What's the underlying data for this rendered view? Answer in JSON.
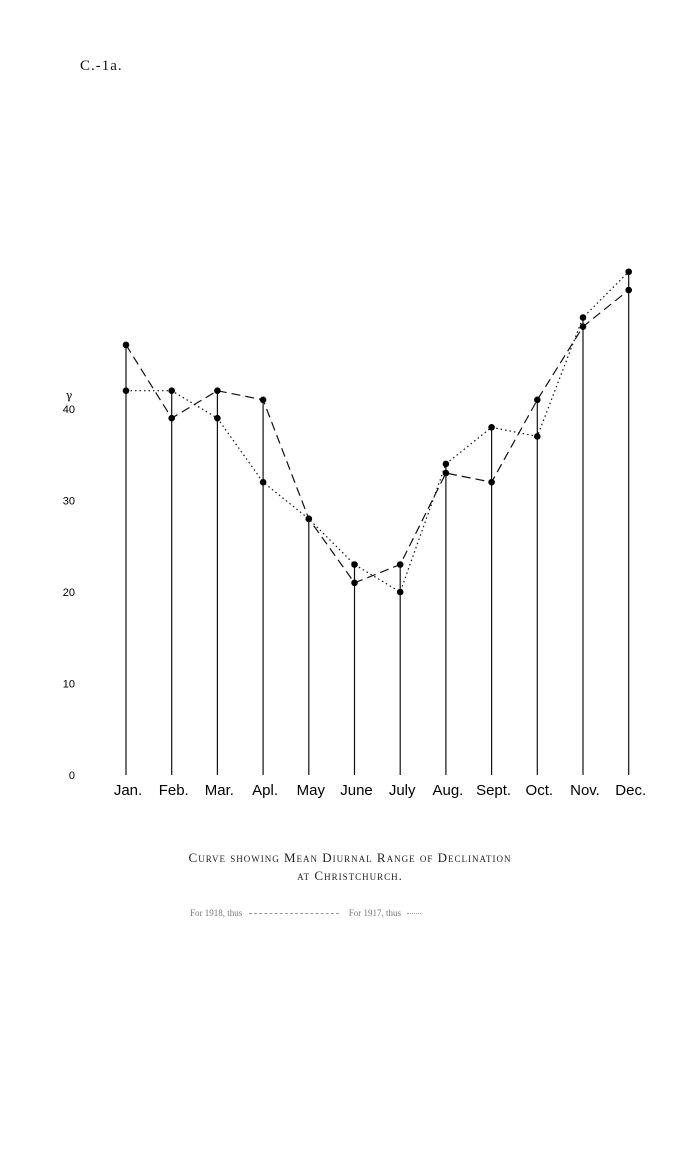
{
  "page_code": "C.-1a.",
  "chart_data": {
    "type": "line",
    "categories": [
      "Jan.",
      "Feb.",
      "Mar.",
      "Apl.",
      "May",
      "June",
      "July",
      "Aug.",
      "Sept.",
      "Oct.",
      "Nov.",
      "Dec."
    ],
    "unit_symbol": "γ",
    "yticks": [
      0,
      10,
      20,
      30,
      40
    ],
    "ylim": [
      0,
      55
    ],
    "series": [
      {
        "name": "For 1918, thus",
        "style": "dashed",
        "values": [
          47,
          39,
          42,
          41,
          28,
          21,
          23,
          33,
          32,
          41,
          49,
          53
        ]
      },
      {
        "name": "For 1917, thus",
        "style": "dotted",
        "values": [
          42,
          42,
          39,
          32,
          28,
          23,
          20,
          34,
          38,
          37,
          50,
          55
        ]
      }
    ],
    "title": "Curve showing Mean Diurnal Range of Declination",
    "subtitle": "at Christchurch.",
    "grid": false,
    "legend_position": "bottom"
  }
}
